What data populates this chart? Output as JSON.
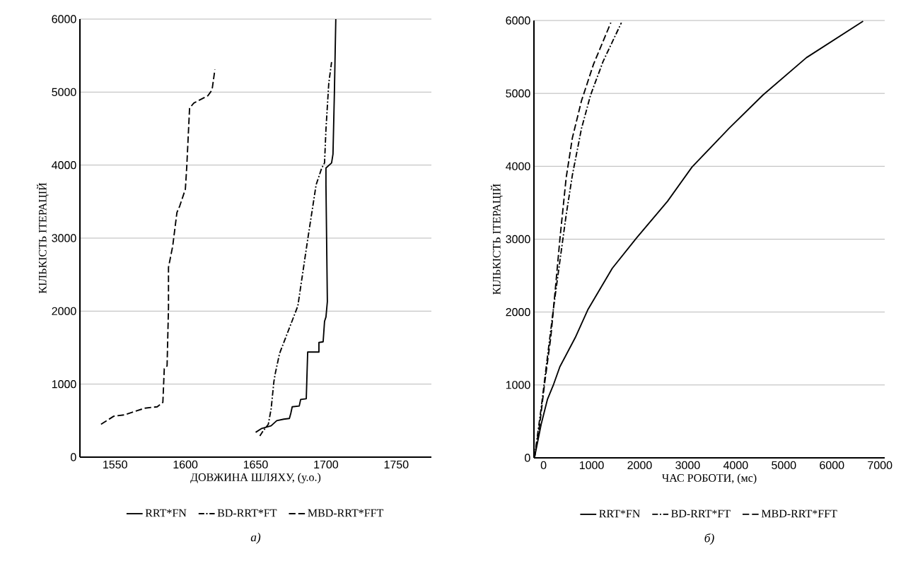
{
  "chart_data": [
    {
      "type": "line",
      "xlabel": "ДОВЖИНА ШЛЯХУ, (у.о.)",
      "ylabel": "КІЛЬКІСТЬ ІТЕРАЦІЙ",
      "xlim": [
        1525,
        1775
      ],
      "ylim": [
        0,
        6000
      ],
      "xticks": [
        1550,
        1600,
        1650,
        1700,
        1750
      ],
      "yticks": [
        0,
        1000,
        2000,
        3000,
        4000,
        5000,
        6000
      ],
      "grid": "y",
      "legend": "bottom",
      "annotations": [
        "а)"
      ],
      "series": [
        {
          "name": "RRT*FN",
          "color": "#000000",
          "line_style": "solid",
          "x": [
            1650,
            1654,
            1661,
            1665,
            1670,
            1674,
            1675,
            1676,
            1681,
            1682,
            1686,
            1687,
            1695,
            1695,
            1698,
            1699,
            1700,
            1701,
            1700,
            1700,
            1704,
            1705,
            1706,
            1707
          ],
          "values": [
            340,
            390,
            430,
            500,
            520,
            530,
            600,
            690,
            700,
            790,
            800,
            1440,
            1440,
            1570,
            1580,
            1860,
            1920,
            2130,
            3730,
            3960,
            4030,
            4150,
            4990,
            6000
          ]
        },
        {
          "name": "BD-RRT*FT",
          "color": "#000000",
          "line_style": "dashdot",
          "x": [
            1653,
            1655,
            1659,
            1661,
            1663,
            1664,
            1667,
            1672,
            1680,
            1687,
            1693,
            1697,
            1699,
            1700,
            1702,
            1704
          ],
          "values": [
            290,
            350,
            450,
            660,
            1040,
            1150,
            1420,
            1670,
            2070,
            2980,
            3730,
            3960,
            4030,
            4490,
            5120,
            5410
          ]
        },
        {
          "name": "MBD-RRT*FFT",
          "color": "#000000",
          "line_style": "dashed",
          "x": [
            1540,
            1549,
            1557,
            1571,
            1580,
            1584,
            1585,
            1587,
            1588,
            1588,
            1591,
            1594,
            1596,
            1600,
            1601,
            1603,
            1606,
            1616,
            1619,
            1621
          ],
          "values": [
            450,
            560,
            580,
            670,
            690,
            750,
            1210,
            1250,
            2050,
            2600,
            2890,
            3350,
            3440,
            3670,
            3980,
            4780,
            4850,
            4950,
            5030,
            5310
          ]
        }
      ]
    },
    {
      "type": "line",
      "xlabel": "ЧАС РОБОТИ, (мс)",
      "ylabel": "КІЛЬКІСТЬ ІТЕРАЦІЙ",
      "xlim": [
        -200,
        7100
      ],
      "ylim": [
        0,
        6000
      ],
      "xticks": [
        0,
        1000,
        2000,
        3000,
        4000,
        5000,
        6000,
        7000
      ],
      "yticks": [
        0,
        1000,
        2000,
        3000,
        4000,
        5000,
        6000
      ],
      "grid": "y",
      "legend": "bottom",
      "annotations": [
        "б)"
      ],
      "series": [
        {
          "name": "RRT*FN",
          "color": "#000000",
          "line_style": "solid",
          "x": [
            -190,
            -50,
            80,
            210,
            340,
            660,
            920,
            1430,
            1940,
            2580,
            3090,
            3860,
            4570,
            5470,
            6650
          ],
          "values": [
            0,
            460,
            800,
            1010,
            1250,
            1650,
            2030,
            2600,
            3020,
            3520,
            3990,
            4520,
            4980,
            5490,
            5990
          ]
        },
        {
          "name": "BD-RRT*FT",
          "color": "#000000",
          "line_style": "dashdot",
          "x": [
            -190,
            -50,
            50,
            210,
            340,
            470,
            600,
            790,
            980,
            1240,
            1620
          ],
          "values": [
            0,
            680,
            1220,
            2070,
            2700,
            3330,
            3880,
            4520,
            4980,
            5440,
            5970
          ]
        },
        {
          "name": "MBD-RRT*FFT",
          "color": "#000000",
          "line_style": "dashed",
          "x": [
            -190,
            -80,
            20,
            150,
            240,
            340,
            470,
            600,
            790,
            1040,
            1400
          ],
          "values": [
            0,
            460,
            1010,
            1650,
            2280,
            3000,
            3840,
            4390,
            4900,
            5400,
            5970
          ]
        }
      ]
    }
  ]
}
